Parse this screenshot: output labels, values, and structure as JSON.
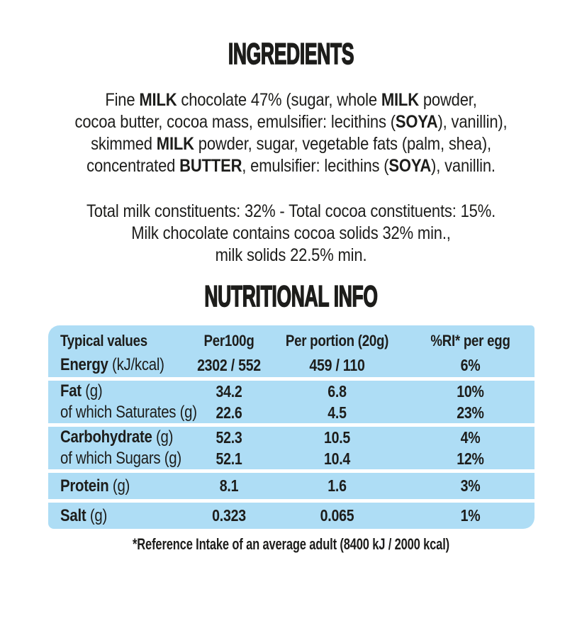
{
  "colors": {
    "background": "#ffffff",
    "text": "#1d1d1b",
    "table_row_bg": "#aeddf5"
  },
  "ingredients": {
    "title": "INGREDIENTS",
    "lines": [
      [
        {
          "t": "Fine "
        },
        {
          "t": "MILK",
          "b": 1
        },
        {
          "t": " chocolate 47% (sugar, whole "
        },
        {
          "t": "MILK",
          "b": 1
        },
        {
          "t": " powder,"
        }
      ],
      [
        {
          "t": "cocoa butter, cocoa mass, emulsifier: lecithins ("
        },
        {
          "t": "SOYA",
          "b": 1
        },
        {
          "t": "), vanillin),"
        }
      ],
      [
        {
          "t": "skimmed "
        },
        {
          "t": "MILK",
          "b": 1
        },
        {
          "t": " powder, sugar, vegetable fats (palm, shea),"
        }
      ],
      [
        {
          "t": "concentrated "
        },
        {
          "t": "BUTTER",
          "b": 1
        },
        {
          "t": ", emulsifier: lecithins ("
        },
        {
          "t": "SOYA",
          "b": 1
        },
        {
          "t": "), vanillin."
        }
      ]
    ],
    "constituents_lines": [
      "Total milk constituents: 32% - Total cocoa constituents: 15%.",
      "Milk chocolate contains cocoa solids 32% min.,",
      "milk solids 22.5% min."
    ]
  },
  "nutrition": {
    "title": "NUTRITIONAL INFO",
    "columns": [
      "Typical values",
      "Per100g",
      "Per portion (20g)",
      "%RI* per egg"
    ],
    "groups": [
      {
        "rows": [
          {
            "bold": "Energy",
            "rest": " (kJ/kcal)",
            "values": [
              "2302 / 552",
              "459 / 110",
              "6%"
            ]
          }
        ]
      },
      {
        "rows": [
          {
            "bold": "Fat",
            "rest": " (g)",
            "values": [
              "34.2",
              "6.8",
              "10%"
            ]
          },
          {
            "bold": "",
            "rest": "of which Saturates (g)",
            "values": [
              "22.6",
              "4.5",
              "23%"
            ]
          }
        ]
      },
      {
        "rows": [
          {
            "bold": "Carbohydrate",
            "rest": " (g)",
            "values": [
              "52.3",
              "10.5",
              "4%"
            ]
          },
          {
            "bold": "",
            "rest": "of which Sugars (g)",
            "values": [
              "52.1",
              "10.4",
              "12%"
            ]
          }
        ]
      },
      {
        "rows": [
          {
            "bold": "Protein",
            "rest": " (g)",
            "values": [
              "8.1",
              "1.6",
              "3%"
            ]
          }
        ]
      },
      {
        "rows": [
          {
            "bold": "Salt",
            "rest": " (g)",
            "values": [
              "0.323",
              "0.065",
              "1%"
            ]
          }
        ]
      }
    ],
    "footnote": "*Reference Intake of an average adult (8400 kJ / 2000 kcal)"
  }
}
